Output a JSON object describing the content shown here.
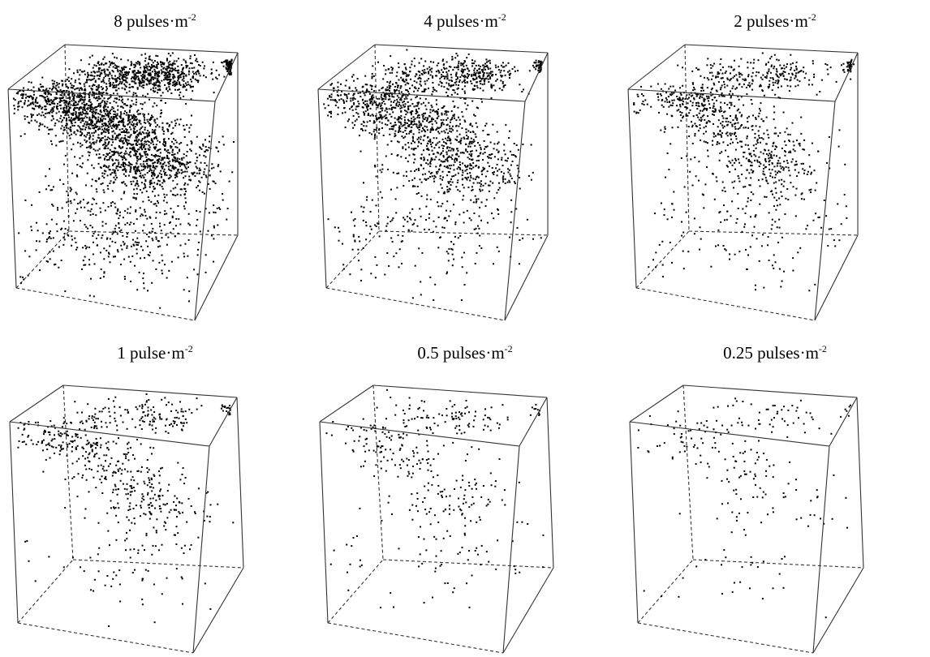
{
  "panels": [
    {
      "id": "p8",
      "base": "8 pulses·m",
      "exp": "-2",
      "density": 8
    },
    {
      "id": "p4",
      "base": "4 pulses·m",
      "exp": "-2",
      "density": 4
    },
    {
      "id": "p2",
      "base": "2 pulses·m",
      "exp": "-2",
      "density": 2
    },
    {
      "id": "p1",
      "base": "1 pulse·m",
      "exp": "-2",
      "density": 1
    },
    {
      "id": "p05",
      "base": "0.5 pulses·m",
      "exp": "-2",
      "density": 0.5
    },
    {
      "id": "p025",
      "base": "0.25 pulses·m",
      "exp": "-2",
      "density": 0.25
    }
  ],
  "colors": {
    "points": "#000000",
    "edges": "#333333"
  }
}
